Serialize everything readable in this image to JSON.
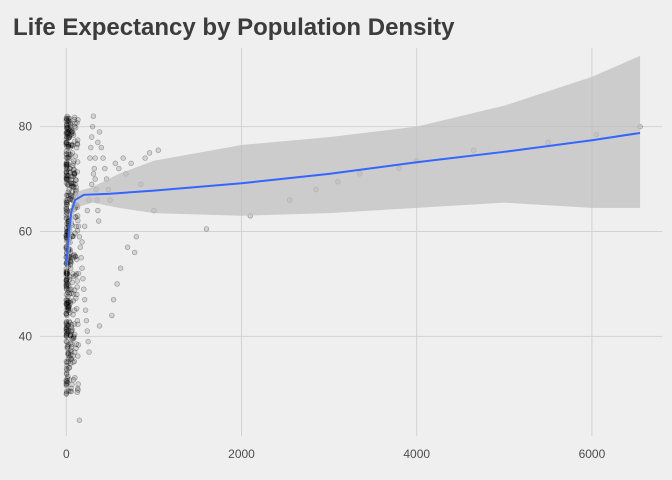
{
  "chart_data": {
    "type": "scatter",
    "title": "Life Expectancy by Population Density",
    "xlabel": "",
    "ylabel": "",
    "xlim": [
      -300,
      6800
    ],
    "ylim": [
      21,
      95
    ],
    "x_ticks": [
      0,
      2000,
      4000,
      6000
    ],
    "y_ticks": [
      40,
      60,
      80
    ],
    "grid": true,
    "colors": {
      "background": "#efefef",
      "grid": "#d2d2d2",
      "points": "#000000",
      "trend_line": "#3366ff",
      "confidence_band": "#bdbdbd"
    },
    "points_dense": {
      "description_note": "",
      "x_range": [
        0,
        400
      ],
      "y_range": [
        29,
        82
      ]
    },
    "scatter_points": [
      [
        0,
        29
      ],
      [
        0,
        31
      ],
      [
        5,
        33
      ],
      [
        8,
        35
      ],
      [
        10,
        38
      ],
      [
        3,
        40
      ],
      [
        12,
        42
      ],
      [
        6,
        44
      ],
      [
        15,
        46
      ],
      [
        2,
        48
      ],
      [
        18,
        50
      ],
      [
        9,
        52
      ],
      [
        20,
        54
      ],
      [
        4,
        56
      ],
      [
        25,
        58
      ],
      [
        7,
        60
      ],
      [
        30,
        62
      ],
      [
        11,
        64
      ],
      [
        14,
        66
      ],
      [
        35,
        68
      ],
      [
        16,
        70
      ],
      [
        40,
        72
      ],
      [
        21,
        74
      ],
      [
        45,
        76
      ],
      [
        27,
        78
      ],
      [
        50,
        80
      ],
      [
        33,
        81
      ],
      [
        60,
        79
      ],
      [
        70,
        75
      ],
      [
        80,
        73
      ],
      [
        90,
        71
      ],
      [
        100,
        69
      ],
      [
        110,
        67
      ],
      [
        120,
        65
      ],
      [
        130,
        63
      ],
      [
        140,
        61
      ],
      [
        150,
        59
      ],
      [
        160,
        57
      ],
      [
        170,
        55
      ],
      [
        180,
        53
      ],
      [
        190,
        51
      ],
      [
        200,
        49
      ],
      [
        210,
        47
      ],
      [
        220,
        45
      ],
      [
        230,
        43
      ],
      [
        240,
        41
      ],
      [
        250,
        39
      ],
      [
        260,
        37
      ],
      [
        270,
        74
      ],
      [
        280,
        76
      ],
      [
        290,
        78
      ],
      [
        300,
        80
      ],
      [
        310,
        82
      ],
      [
        320,
        72
      ],
      [
        330,
        70
      ],
      [
        340,
        68
      ],
      [
        350,
        66
      ],
      [
        360,
        64
      ],
      [
        370,
        62
      ],
      [
        380,
        42
      ],
      [
        400,
        76
      ],
      [
        420,
        74
      ],
      [
        440,
        72
      ],
      [
        460,
        70
      ],
      [
        480,
        68
      ],
      [
        500,
        66
      ],
      [
        520,
        44
      ],
      [
        540,
        47
      ],
      [
        560,
        73
      ],
      [
        580,
        50
      ],
      [
        600,
        72
      ],
      [
        620,
        53
      ],
      [
        650,
        74
      ],
      [
        680,
        71
      ],
      [
        700,
        57
      ],
      [
        740,
        73
      ],
      [
        780,
        56
      ],
      [
        800,
        59
      ],
      [
        850,
        69
      ],
      [
        900,
        74
      ],
      [
        950,
        75
      ],
      [
        1000,
        64
      ],
      [
        1050,
        75.5
      ],
      [
        1600,
        60.5
      ],
      [
        2100,
        63
      ],
      [
        2550,
        66
      ],
      [
        2850,
        68
      ],
      [
        3100,
        69.5
      ],
      [
        3350,
        71
      ],
      [
        3800,
        72
      ],
      [
        4000,
        73.5
      ],
      [
        4650,
        75.5
      ],
      [
        5500,
        77
      ],
      [
        6050,
        78.5
      ],
      [
        6550,
        80
      ],
      [
        150,
        24
      ],
      [
        40,
        36
      ],
      [
        60,
        38
      ],
      [
        85,
        40
      ],
      [
        95,
        45
      ],
      [
        120,
        48
      ],
      [
        140,
        52
      ],
      [
        180,
        58
      ],
      [
        210,
        61
      ],
      [
        240,
        64
      ],
      [
        260,
        66
      ],
      [
        290,
        69
      ],
      [
        310,
        71
      ],
      [
        330,
        74
      ],
      [
        360,
        77
      ],
      [
        380,
        79
      ]
    ],
    "trend_line": [
      [
        0,
        53.5
      ],
      [
        30,
        60
      ],
      [
        60,
        64
      ],
      [
        100,
        66
      ],
      [
        200,
        67
      ],
      [
        500,
        67.2
      ],
      [
        1000,
        67.8
      ],
      [
        2000,
        69.2
      ],
      [
        3000,
        71
      ],
      [
        4000,
        73.2
      ],
      [
        5000,
        75.2
      ],
      [
        6000,
        77.4
      ],
      [
        6550,
        78.8
      ]
    ],
    "band_upper": [
      [
        0,
        56
      ],
      [
        50,
        64
      ],
      [
        100,
        67.5
      ],
      [
        300,
        68.5
      ],
      [
        600,
        71
      ],
      [
        1000,
        73.5
      ],
      [
        2000,
        76.5
      ],
      [
        3000,
        78
      ],
      [
        4000,
        80
      ],
      [
        5000,
        84
      ],
      [
        6000,
        89.5
      ],
      [
        6550,
        93.5
      ]
    ],
    "band_lower": [
      [
        0,
        51
      ],
      [
        50,
        58
      ],
      [
        100,
        64.5
      ],
      [
        300,
        65.5
      ],
      [
        600,
        64.5
      ],
      [
        1000,
        63.5
      ],
      [
        2000,
        63
      ],
      [
        3000,
        63.5
      ],
      [
        4000,
        64.5
      ],
      [
        5000,
        65.5
      ],
      [
        6000,
        64.5
      ],
      [
        6550,
        64.5
      ]
    ]
  }
}
